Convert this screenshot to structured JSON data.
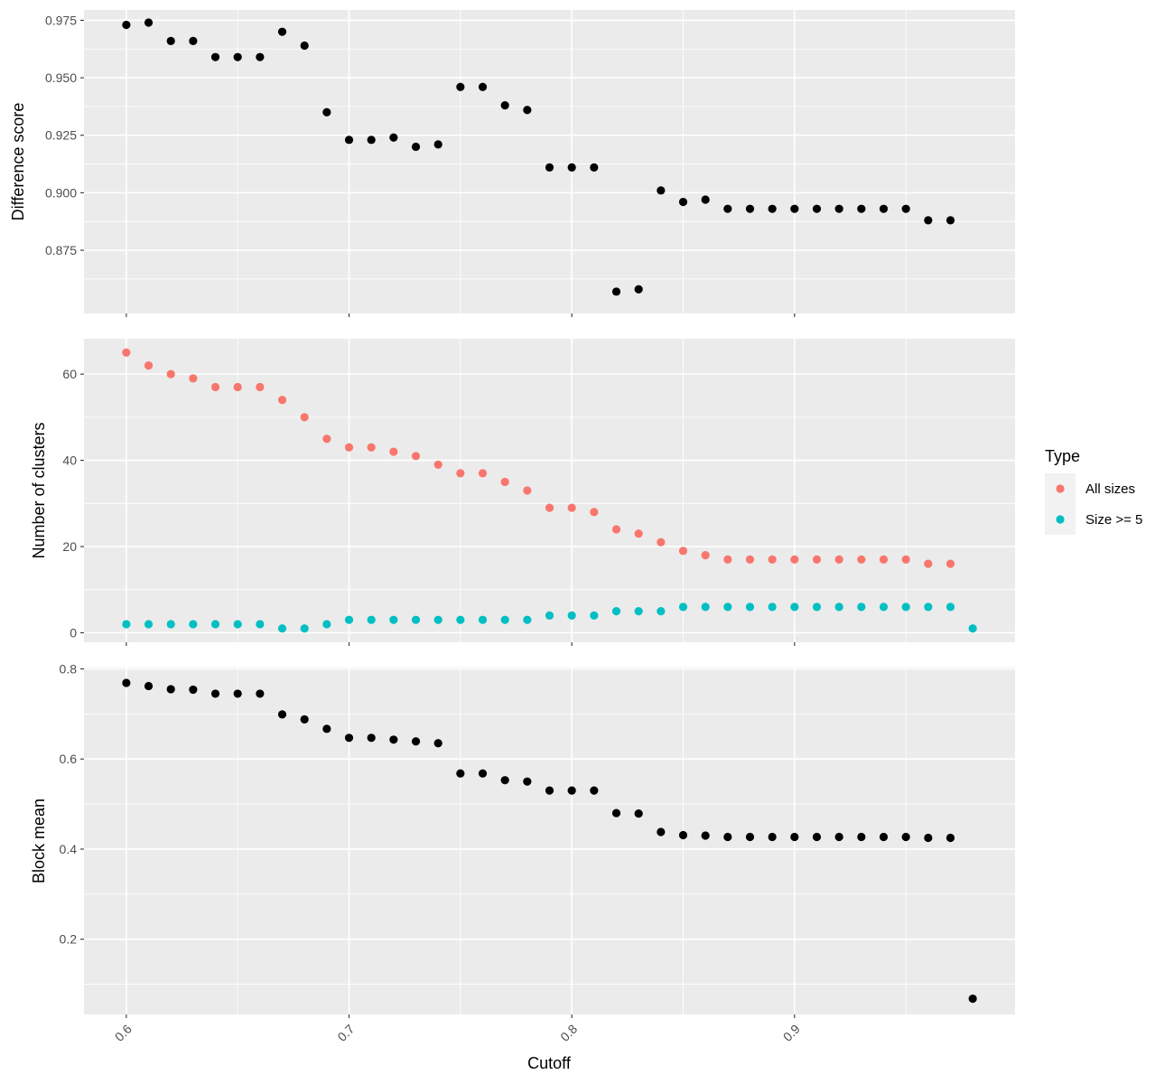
{
  "chart_data": {
    "type": "scatter",
    "xlabel": "Cutoff",
    "x_ticks": [
      0.6,
      0.7,
      0.8,
      0.9
    ],
    "x_tick_labels": [
      "0.6",
      "0.7",
      "0.8",
      "0.9"
    ],
    "xlim": [
      0.581,
      0.999
    ],
    "grid": true,
    "legend": {
      "title": "Type",
      "placement": "right",
      "entries": [
        {
          "name": "All sizes",
          "color": "#F8766D"
        },
        {
          "name": "Size >= 5",
          "color": "#00BFC4"
        }
      ]
    },
    "panels": [
      {
        "ylabel": "Difference score",
        "ylim": [
          0.8475,
          0.9795
        ],
        "y_ticks": [
          0.875,
          0.9,
          0.925,
          0.95,
          0.975
        ],
        "y_tick_labels": [
          "0.875",
          "0.900",
          "0.925",
          "0.950",
          "0.975"
        ],
        "series": [
          {
            "color": "#000000",
            "x": [
              0.6,
              0.61,
              0.62,
              0.63,
              0.64,
              0.65,
              0.66,
              0.67,
              0.68,
              0.69,
              0.7,
              0.71,
              0.72,
              0.73,
              0.74,
              0.75,
              0.76,
              0.77,
              0.78,
              0.79,
              0.8,
              0.81,
              0.82,
              0.83,
              0.84,
              0.85,
              0.86,
              0.87,
              0.88,
              0.89,
              0.9,
              0.91,
              0.92,
              0.93,
              0.94,
              0.95,
              0.96,
              0.97
            ],
            "y": [
              0.973,
              0.974,
              0.966,
              0.966,
              0.959,
              0.959,
              0.959,
              0.97,
              0.964,
              0.935,
              0.923,
              0.923,
              0.924,
              0.92,
              0.921,
              0.946,
              0.946,
              0.938,
              0.936,
              0.911,
              0.911,
              0.911,
              0.857,
              0.858,
              0.901,
              0.896,
              0.897,
              0.893,
              0.893,
              0.893,
              0.893,
              0.893,
              0.893,
              0.893,
              0.893,
              0.893,
              0.888,
              0.888
            ]
          }
        ]
      },
      {
        "ylabel": "Number of clusters",
        "ylim": [
          -2.2,
          68.2
        ],
        "y_ticks": [
          0,
          20,
          40,
          60
        ],
        "y_tick_labels": [
          "0",
          "20",
          "40",
          "60"
        ],
        "series": [
          {
            "name": "All sizes",
            "color": "#F8766D",
            "x": [
              0.6,
              0.61,
              0.62,
              0.63,
              0.64,
              0.65,
              0.66,
              0.67,
              0.68,
              0.69,
              0.7,
              0.71,
              0.72,
              0.73,
              0.74,
              0.75,
              0.76,
              0.77,
              0.78,
              0.79,
              0.8,
              0.81,
              0.82,
              0.83,
              0.84,
              0.85,
              0.86,
              0.87,
              0.88,
              0.89,
              0.9,
              0.91,
              0.92,
              0.93,
              0.94,
              0.95,
              0.96,
              0.97
            ],
            "y": [
              65,
              62,
              60,
              59,
              57,
              57,
              57,
              54,
              50,
              45,
              43,
              43,
              42,
              41,
              39,
              37,
              37,
              35,
              33,
              29,
              29,
              28,
              24,
              23,
              21,
              19,
              18,
              17,
              17,
              17,
              17,
              17,
              17,
              17,
              17,
              17,
              16,
              16
            ]
          },
          {
            "name": "Size >= 5",
            "color": "#00BFC4",
            "x": [
              0.6,
              0.61,
              0.62,
              0.63,
              0.64,
              0.65,
              0.66,
              0.67,
              0.68,
              0.69,
              0.7,
              0.71,
              0.72,
              0.73,
              0.74,
              0.75,
              0.76,
              0.77,
              0.78,
              0.79,
              0.8,
              0.81,
              0.82,
              0.83,
              0.84,
              0.85,
              0.86,
              0.87,
              0.88,
              0.89,
              0.9,
              0.91,
              0.92,
              0.93,
              0.94,
              0.95,
              0.96,
              0.97,
              0.98
            ],
            "y": [
              2,
              2,
              2,
              2,
              2,
              2,
              2,
              1,
              1,
              2,
              3,
              3,
              3,
              3,
              3,
              3,
              3,
              3,
              3,
              4,
              4,
              4,
              5,
              5,
              5,
              6,
              6,
              6,
              6,
              6,
              6,
              6,
              6,
              6,
              6,
              6,
              6,
              6,
              1
            ]
          }
        ]
      },
      {
        "ylabel": "Block mean",
        "ylim": [
          0.033,
          0.803
        ],
        "y_ticks": [
          0.2,
          0.4,
          0.6,
          0.8
        ],
        "y_tick_labels": [
          "0.2",
          "0.4",
          "0.6",
          "0.8"
        ],
        "series": [
          {
            "color": "#000000",
            "x": [
              0.6,
              0.61,
              0.62,
              0.63,
              0.64,
              0.65,
              0.66,
              0.67,
              0.68,
              0.69,
              0.7,
              0.71,
              0.72,
              0.73,
              0.74,
              0.75,
              0.76,
              0.77,
              0.78,
              0.79,
              0.8,
              0.81,
              0.82,
              0.83,
              0.84,
              0.85,
              0.86,
              0.87,
              0.88,
              0.89,
              0.9,
              0.91,
              0.92,
              0.93,
              0.94,
              0.95,
              0.96,
              0.97,
              0.98
            ],
            "y": [
              0.769,
              0.762,
              0.755,
              0.754,
              0.745,
              0.745,
              0.745,
              0.699,
              0.688,
              0.667,
              0.647,
              0.647,
              0.643,
              0.639,
              0.635,
              0.568,
              0.568,
              0.553,
              0.55,
              0.53,
              0.53,
              0.53,
              0.48,
              0.479,
              0.438,
              0.431,
              0.43,
              0.427,
              0.427,
              0.427,
              0.427,
              0.427,
              0.427,
              0.427,
              0.427,
              0.427,
              0.425,
              0.425,
              0.068
            ]
          }
        ]
      }
    ]
  }
}
